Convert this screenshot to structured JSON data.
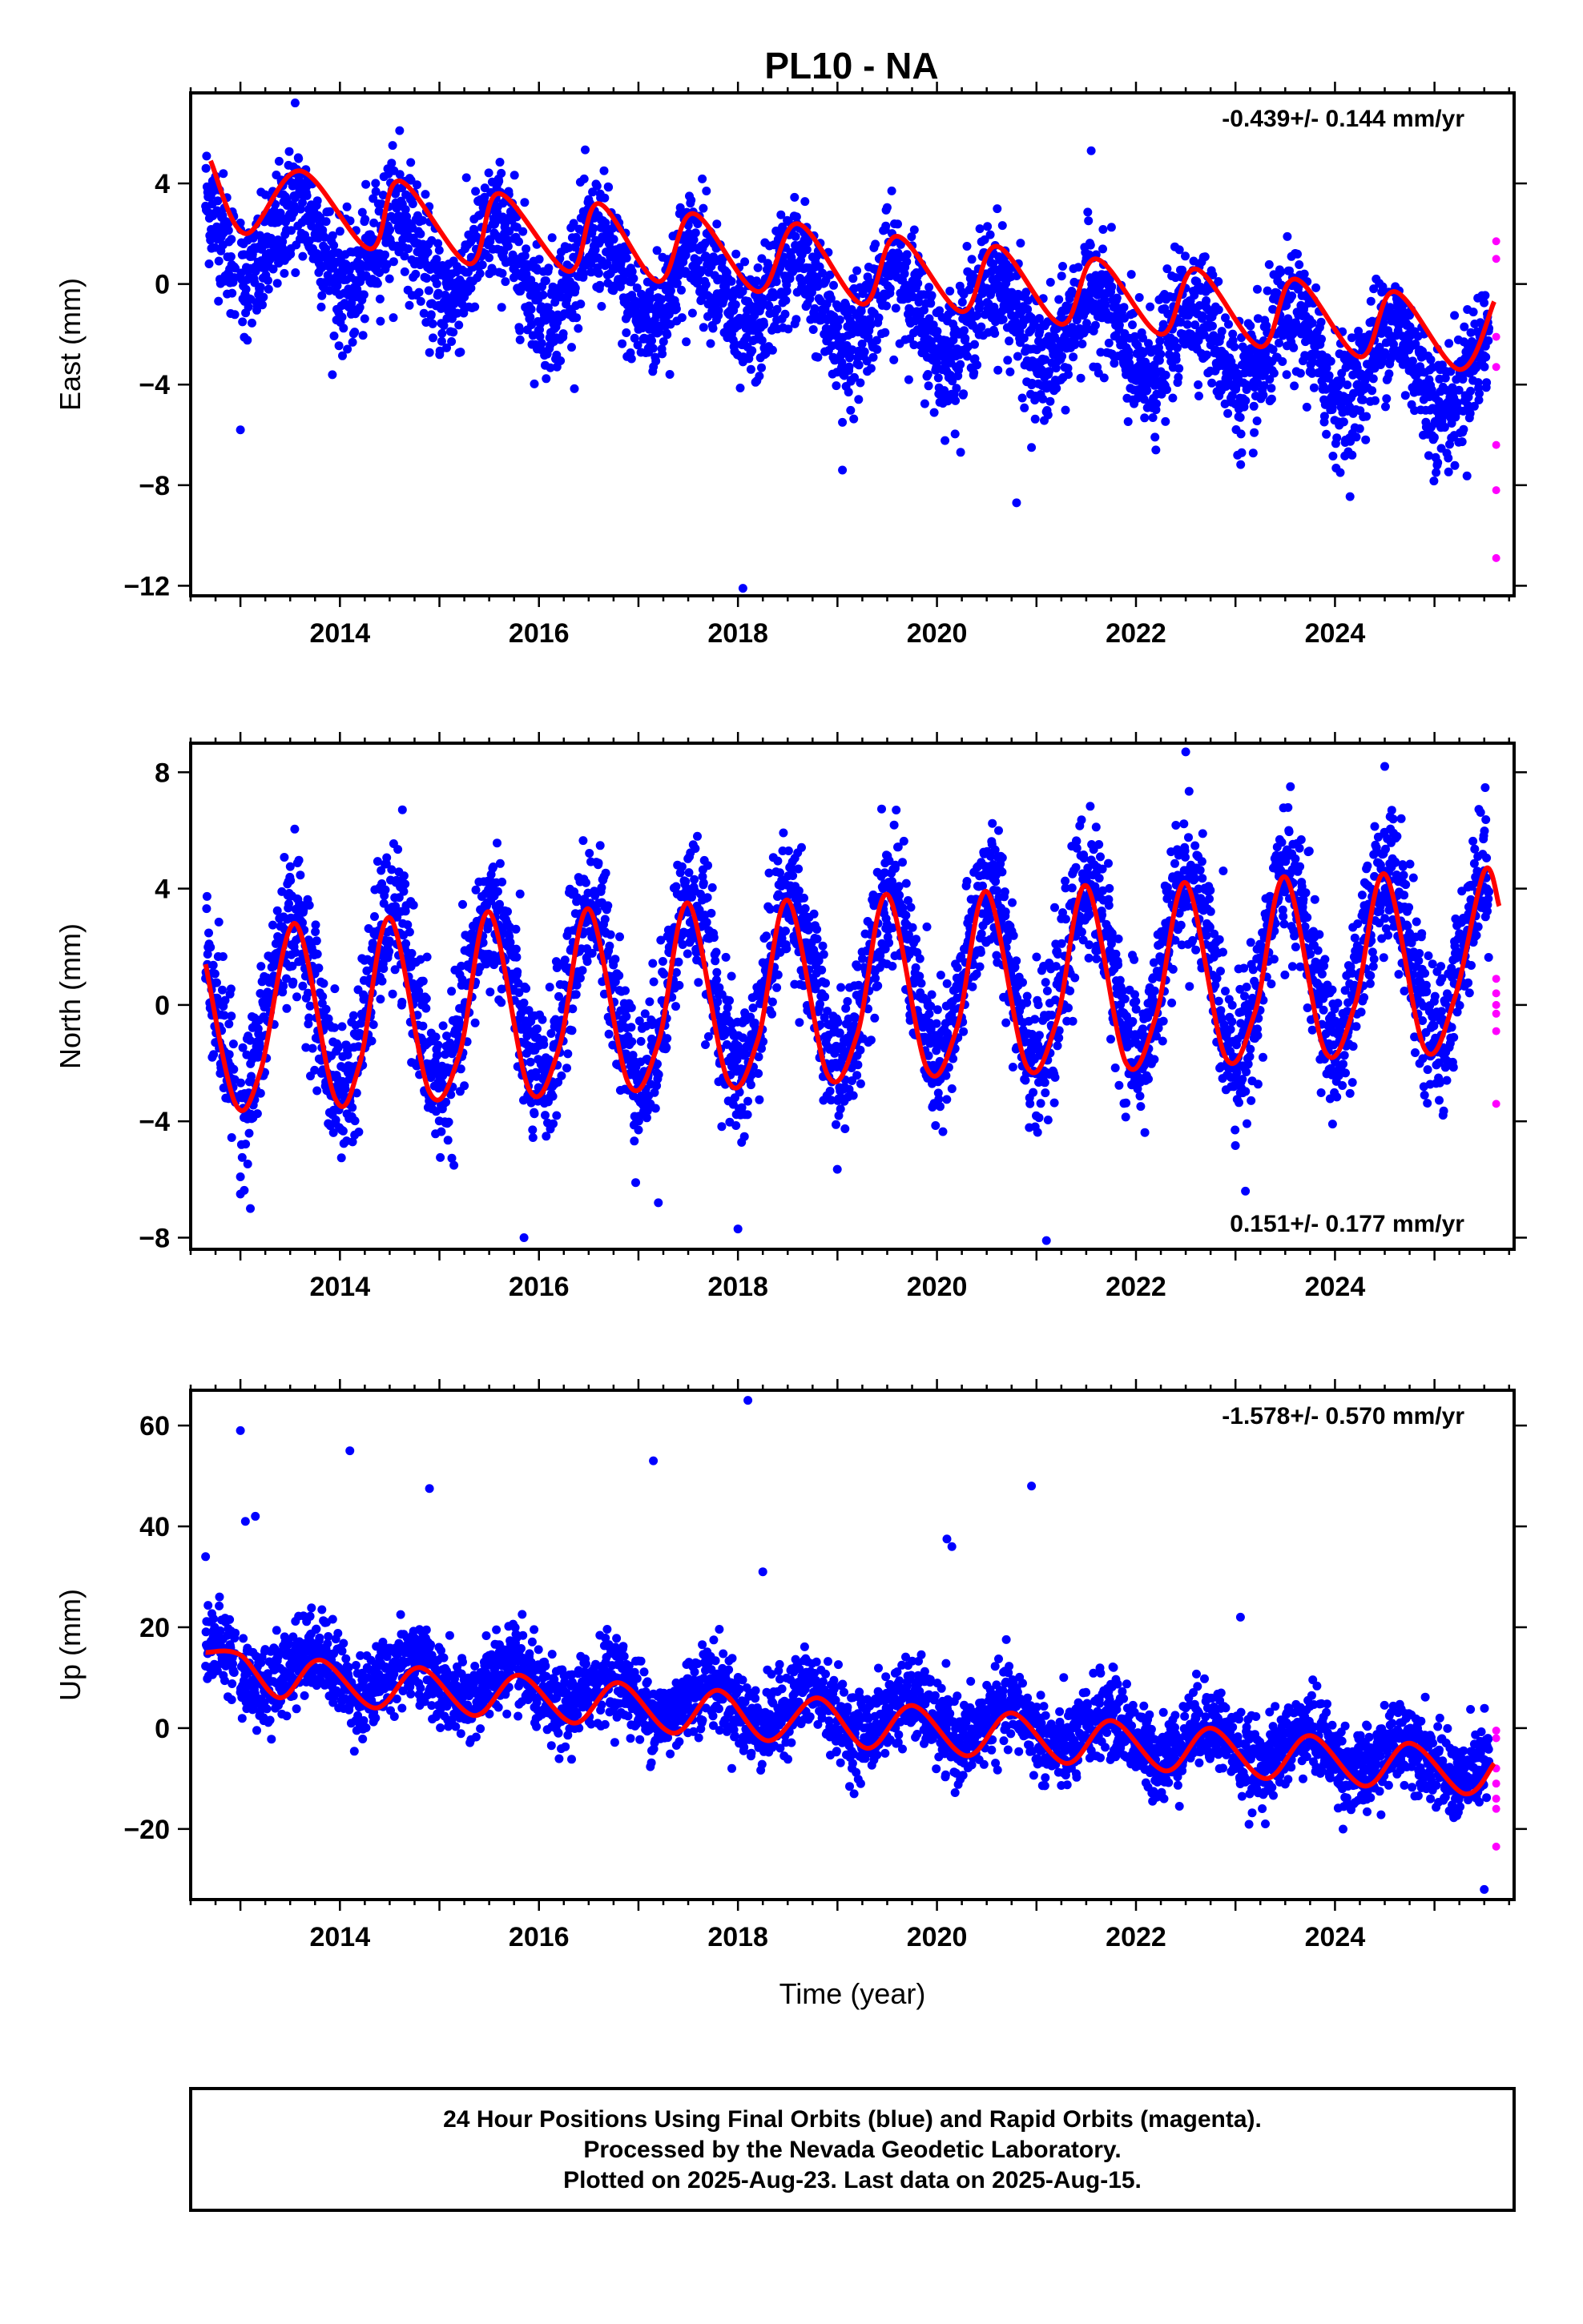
{
  "title": "PL10 - NA",
  "colors": {
    "final_orbits": "#0000ff",
    "rapid_orbits": "#ff00ff",
    "fit": "#ff0000"
  },
  "footer": {
    "line1": "24 Hour Positions Using Final Orbits (blue) and Rapid Orbits (magenta).",
    "line2": "Processed by the Nevada Geodetic Laboratory.",
    "line3": "Plotted on 2025-Aug-23. Last data on 2025-Aug-15."
  },
  "chart_data": [
    {
      "type": "scatter",
      "title": "",
      "ylabel": "East (mm)",
      "xlabel": "",
      "xlim": [
        2012.5,
        2025.8
      ],
      "ylim": [
        -12.4,
        7.6
      ],
      "xticks": [
        2014,
        2016,
        2018,
        2020,
        2022,
        2024
      ],
      "yticks": [
        4,
        0,
        -4,
        -8,
        -12
      ],
      "ytick_labels": [
        "4",
        "0",
        "−4",
        "−8",
        "−12"
      ],
      "rate": "-0.439+/- 0.144 mm/yr",
      "rate_position": "top-right",
      "model": {
        "offset": 2.0,
        "trend": -0.439,
        "t0": 2012.7,
        "amplitude": 1.6,
        "peak_phase": 0.58,
        "scatter": 1.2
      },
      "fit_line": {
        "x": [
          2012.7,
          2013.05,
          2013.6,
          2014.3,
          2014.6,
          2015.3,
          2015.6,
          2016.3,
          2016.6,
          2017.2,
          2017.55,
          2018.2,
          2018.6,
          2019.25,
          2019.6,
          2020.25,
          2020.6,
          2021.25,
          2021.6,
          2022.25,
          2022.6,
          2023.25,
          2023.6,
          2024.25,
          2024.6,
          2025.25,
          2025.6
        ],
        "y": [
          4.9,
          2.0,
          4.5,
          1.4,
          4.1,
          0.8,
          3.6,
          0.5,
          3.2,
          0.1,
          2.8,
          -0.3,
          2.4,
          -0.8,
          1.9,
          -1.1,
          1.5,
          -1.6,
          1.0,
          -2.0,
          0.6,
          -2.5,
          0.2,
          -2.9,
          -0.3,
          -3.4,
          -0.7
        ]
      },
      "outliers": {
        "x": [
          2013.0,
          2018.05,
          2019.05,
          2019.05,
          2020.8,
          2020.95,
          2022.2,
          2013.55,
          2014.6,
          2021.55
        ],
        "y": [
          -5.8,
          -12.1,
          -7.4,
          -5.5,
          -8.7,
          -6.5,
          -6.6,
          7.2,
          6.1,
          5.3
        ]
      },
      "rapid": {
        "x": [
          2025.62,
          2025.62,
          2025.62,
          2025.62,
          2025.62,
          2025.62,
          2025.62
        ],
        "y": [
          1.7,
          1.0,
          -2.1,
          -3.3,
          -6.4,
          -8.2,
          -10.9
        ]
      }
    },
    {
      "type": "scatter",
      "title": "",
      "ylabel": "North (mm)",
      "xlabel": "",
      "xlim": [
        2012.5,
        2025.8
      ],
      "ylim": [
        -8.4,
        9.0
      ],
      "xticks": [
        2014,
        2016,
        2018,
        2020,
        2022,
        2024
      ],
      "yticks": [
        8,
        4,
        0,
        -4,
        -8
      ],
      "ytick_labels": [
        "8",
        "4",
        "0",
        "−4",
        "−8"
      ],
      "rate": "0.151+/- 0.177 mm/yr",
      "rate_position": "bottom-right",
      "model": {
        "offset": -0.2,
        "trend": 0.151,
        "t0": 2012.7,
        "amplitude": 3.0,
        "peak_phase": 0.52,
        "scatter": 1.2
      },
      "fit_line": {
        "x": [
          2012.65,
          2012.95,
          2013.2,
          2013.55,
          2013.95,
          2014.2,
          2014.5,
          2014.9,
          2015.2,
          2015.5,
          2015.9,
          2016.2,
          2016.5,
          2016.9,
          2017.2,
          2017.5,
          2017.9,
          2018.2,
          2018.5,
          2018.9,
          2019.2,
          2019.5,
          2019.9,
          2020.2,
          2020.5,
          2020.9,
          2021.2,
          2021.5,
          2021.9,
          2022.2,
          2022.5,
          2022.9,
          2023.2,
          2023.5,
          2023.9,
          2024.2,
          2024.5,
          2024.9,
          2025.2,
          2025.5,
          2025.65
        ],
        "y": [
          1.4,
          -3.4,
          -2.3,
          2.8,
          -3.2,
          -2.0,
          3.0,
          -3.0,
          -1.7,
          3.2,
          -2.9,
          -1.5,
          3.3,
          -2.7,
          -1.3,
          3.5,
          -2.6,
          -1.2,
          3.6,
          -2.4,
          -1.0,
          3.8,
          -2.2,
          -0.8,
          3.9,
          -2.1,
          -0.6,
          4.1,
          -2.0,
          -0.4,
          4.2,
          -1.8,
          -0.2,
          4.4,
          -1.6,
          0.0,
          4.5,
          -1.5,
          0.2,
          4.6,
          3.4
        ]
      },
      "outliers": {
        "x": [
          2013.0,
          2013.1,
          2015.85,
          2017.2,
          2018.0,
          2021.1,
          2023.1,
          2022.5,
          2024.5
        ],
        "y": [
          -6.5,
          -7.0,
          -8.0,
          -6.8,
          -7.7,
          -8.1,
          -6.4,
          8.7,
          8.2
        ]
      },
      "rapid": {
        "x": [
          2025.62,
          2025.62,
          2025.62,
          2025.62,
          2025.62,
          2025.62
        ],
        "y": [
          0.9,
          0.4,
          0.0,
          -0.3,
          -0.9,
          -3.4
        ]
      }
    },
    {
      "type": "scatter",
      "title": "",
      "ylabel": "Up (mm)",
      "xlabel": "Time (year)",
      "xlim": [
        2012.5,
        2025.8
      ],
      "ylim": [
        -34,
        67
      ],
      "xticks": [
        2014,
        2016,
        2018,
        2020,
        2022,
        2024
      ],
      "yticks": [
        60,
        40,
        20,
        0,
        -20
      ],
      "ytick_labels": [
        "60",
        "40",
        "20",
        "0",
        "−20"
      ],
      "rate": "-1.578+/- 0.570 mm/yr",
      "rate_position": "top-right",
      "model": {
        "offset": 13.0,
        "trend": -1.578,
        "t0": 2012.7,
        "amplitude": 4.0,
        "peak_phase": 0.72,
        "scatter": 4.0
      },
      "fit_line": {
        "x": [
          2012.65,
          2013.0,
          2013.4,
          2013.8,
          2014.35,
          2014.8,
          2015.35,
          2015.8,
          2016.35,
          2016.8,
          2017.35,
          2017.8,
          2018.3,
          2018.8,
          2019.3,
          2019.75,
          2020.3,
          2020.75,
          2021.3,
          2021.75,
          2022.3,
          2022.75,
          2023.3,
          2023.75,
          2024.3,
          2024.75,
          2025.3,
          2025.6
        ],
        "y": [
          15.0,
          14.5,
          6.0,
          13.5,
          4.0,
          12.0,
          2.5,
          10.5,
          1.0,
          9.0,
          -1.0,
          7.5,
          -2.5,
          6.0,
          -4.0,
          4.5,
          -5.5,
          3.0,
          -7.0,
          1.5,
          -8.5,
          0.0,
          -10.0,
          -1.5,
          -11.5,
          -3.0,
          -13.0,
          -7.0
        ]
      },
      "outliers": {
        "x": [
          2013.0,
          2013.05,
          2013.15,
          2014.1,
          2014.9,
          2017.15,
          2018.1,
          2018.25,
          2020.1,
          2020.15,
          2020.95,
          2023.05,
          2025.5,
          2012.65
        ],
        "y": [
          59.0,
          41.0,
          42.0,
          55.0,
          47.5,
          53.0,
          65.0,
          31.0,
          37.5,
          36.0,
          48.0,
          22.0,
          -32.0,
          34.0
        ]
      },
      "rapid": {
        "x": [
          2025.62,
          2025.62,
          2025.62,
          2025.62,
          2025.62,
          2025.62,
          2025.62
        ],
        "y": [
          -0.5,
          -2.0,
          -8.0,
          -11.0,
          -14.0,
          -16.0,
          -23.5
        ]
      }
    }
  ]
}
